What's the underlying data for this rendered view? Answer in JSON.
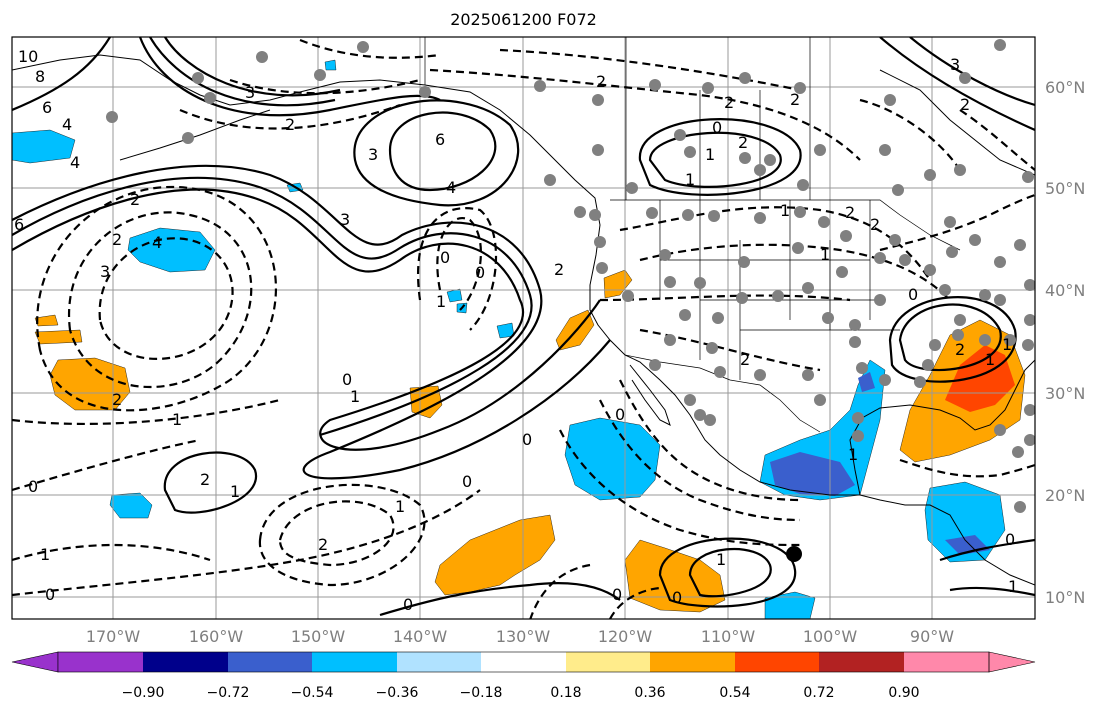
{
  "title": "2025061200 F072",
  "lon_labels": [
    "170°W",
    "160°W",
    "150°W",
    "140°W",
    "130°W",
    "120°W",
    "110°W",
    "100°W",
    "90°W"
  ],
  "lat_labels": [
    "60°N",
    "50°N",
    "40°N",
    "30°N",
    "20°N",
    "10°N"
  ],
  "colorbar": {
    "tick_labels": [
      "−0.90",
      "−0.72",
      "−0.54",
      "−0.36",
      "−0.18",
      "0.18",
      "0.36",
      "0.54",
      "0.72",
      "0.90"
    ],
    "colors": [
      "#9932cc",
      "#00008b",
      "#3a5fcd",
      "#00bfff",
      "#b0e2ff",
      "#ffffff",
      "#ffec8b",
      "#ffa500",
      "#ff4500",
      "#b22222",
      "#ff88aa"
    ]
  },
  "contour_labels": [
    "10",
    "8",
    "6",
    "4",
    "4",
    "6",
    "6",
    "4",
    "3",
    "2",
    "2",
    "3",
    "4",
    "3",
    "2",
    "3",
    "2",
    "2",
    "2",
    "0",
    "2",
    "1",
    "1",
    "2",
    "2",
    "1",
    "0",
    "0",
    "1",
    "0",
    "2",
    "1",
    "2",
    "1",
    "0",
    "0",
    "0",
    "1",
    "1",
    "2",
    "2",
    "1",
    "0",
    "1",
    "0",
    "0",
    "1",
    "0",
    "1",
    "0",
    "2",
    "2",
    "1",
    "1",
    "0",
    "0",
    "1",
    "3",
    "2"
  ],
  "marker": "black-dot"
}
